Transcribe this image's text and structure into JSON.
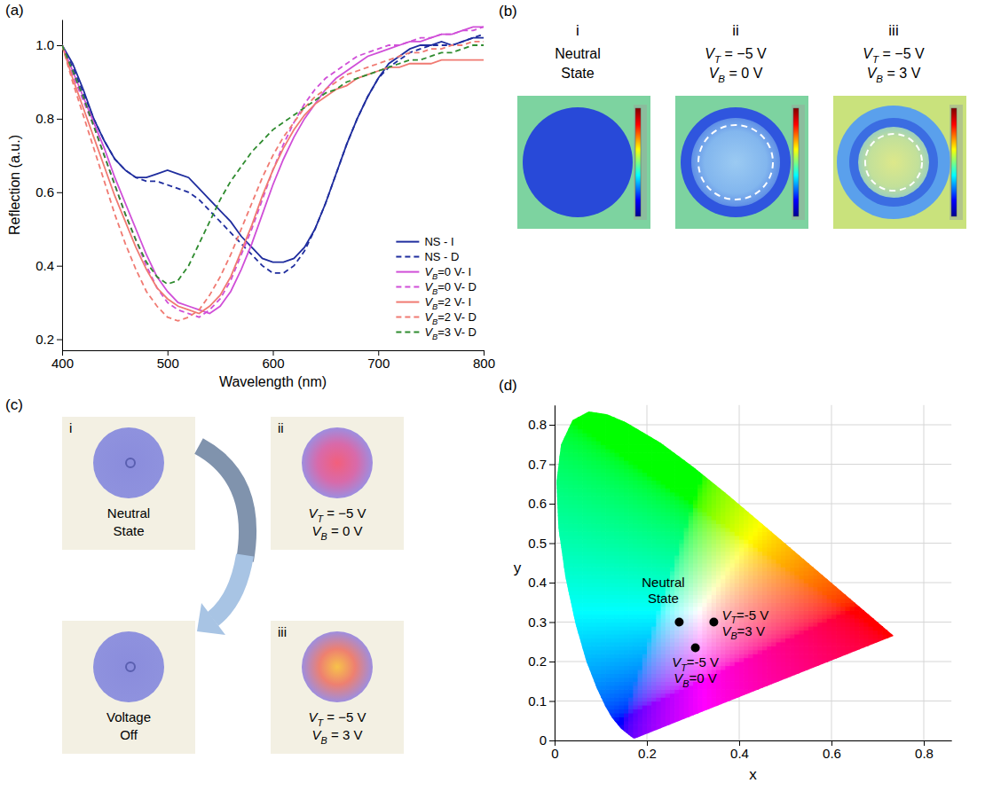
{
  "chart_data": [
    {
      "type": "line",
      "panel": "(a)",
      "xlabel": "Wavelength (nm)",
      "ylabel": "Reflection (a.u.)",
      "x": [
        400,
        410,
        420,
        430,
        440,
        450,
        460,
        470,
        480,
        490,
        500,
        510,
        520,
        530,
        540,
        550,
        560,
        570,
        580,
        590,
        600,
        610,
        620,
        630,
        640,
        650,
        660,
        670,
        680,
        690,
        700,
        710,
        720,
        730,
        740,
        750,
        760,
        770,
        780,
        790,
        800
      ],
      "xlim": [
        400,
        800
      ],
      "xticks": [
        400,
        500,
        600,
        700,
        800
      ],
      "ylim": [
        0.17,
        1.07
      ],
      "yticks": [
        0.2,
        0.4,
        0.6,
        0.8,
        {
          "value": 1,
          "label": "1.0"
        }
      ],
      "legend": "lower right",
      "series": [
        {
          "name": "NS - I",
          "color": "#1f2d9e",
          "line_style": "solid",
          "values": [
            1.0,
            0.95,
            0.88,
            0.8,
            0.74,
            0.69,
            0.66,
            0.64,
            0.64,
            0.65,
            0.66,
            0.65,
            0.64,
            0.61,
            0.58,
            0.55,
            0.52,
            0.48,
            0.45,
            0.42,
            0.41,
            0.41,
            0.42,
            0.45,
            0.5,
            0.57,
            0.65,
            0.73,
            0.8,
            0.86,
            0.91,
            0.95,
            0.97,
            0.99,
            1.0,
            1.0,
            1.01,
            1.0,
            1.01,
            1.02,
            1.02
          ]
        },
        {
          "name": "NS - D",
          "color": "#1f2d9e",
          "line_style": "dashed",
          "values": [
            1.0,
            0.94,
            0.87,
            0.8,
            0.74,
            0.69,
            0.66,
            0.64,
            0.63,
            0.63,
            0.62,
            0.61,
            0.6,
            0.58,
            0.55,
            0.52,
            0.49,
            0.46,
            0.43,
            0.4,
            0.38,
            0.38,
            0.4,
            0.44,
            0.5,
            0.57,
            0.65,
            0.73,
            0.8,
            0.86,
            0.91,
            0.94,
            0.96,
            0.98,
            0.99,
            1.0,
            1.0,
            1.0,
            1.01,
            1.02,
            1.03
          ]
        },
        {
          "name": "VB=0 V- I",
          "color": "#d04fd8",
          "line_style": "solid",
          "values": [
            1.0,
            0.93,
            0.86,
            0.79,
            0.72,
            0.64,
            0.57,
            0.5,
            0.43,
            0.37,
            0.33,
            0.3,
            0.29,
            0.28,
            0.27,
            0.29,
            0.33,
            0.39,
            0.46,
            0.54,
            0.62,
            0.69,
            0.75,
            0.8,
            0.84,
            0.88,
            0.91,
            0.93,
            0.95,
            0.97,
            0.98,
            0.99,
            1.0,
            1.01,
            1.01,
            1.02,
            1.03,
            1.03,
            1.04,
            1.05,
            1.05
          ]
        },
        {
          "name": "VB=0 V- D",
          "color": "#d04fd8",
          "line_style": "dashed",
          "values": [
            1.0,
            0.92,
            0.85,
            0.78,
            0.7,
            0.62,
            0.54,
            0.47,
            0.4,
            0.34,
            0.3,
            0.28,
            0.27,
            0.26,
            0.28,
            0.31,
            0.36,
            0.43,
            0.5,
            0.58,
            0.66,
            0.73,
            0.79,
            0.84,
            0.88,
            0.91,
            0.93,
            0.95,
            0.97,
            0.98,
            0.99,
            1.0,
            1.0,
            1.01,
            1.02,
            1.02,
            1.03,
            1.03,
            1.04,
            1.04,
            1.05
          ]
        },
        {
          "name": "VB=2 V- I",
          "color": "#f07a72",
          "line_style": "solid",
          "values": [
            1.0,
            0.91,
            0.83,
            0.75,
            0.67,
            0.59,
            0.52,
            0.45,
            0.39,
            0.34,
            0.31,
            0.29,
            0.28,
            0.27,
            0.29,
            0.32,
            0.37,
            0.44,
            0.51,
            0.59,
            0.66,
            0.72,
            0.77,
            0.81,
            0.84,
            0.86,
            0.88,
            0.89,
            0.91,
            0.92,
            0.93,
            0.94,
            0.94,
            0.95,
            0.95,
            0.95,
            0.96,
            0.96,
            0.96,
            0.96,
            0.96
          ]
        },
        {
          "name": "VB=2 V- D",
          "color": "#f07a72",
          "line_style": "dashed",
          "values": [
            1.0,
            0.9,
            0.81,
            0.72,
            0.63,
            0.54,
            0.46,
            0.39,
            0.33,
            0.29,
            0.26,
            0.25,
            0.26,
            0.28,
            0.32,
            0.37,
            0.43,
            0.5,
            0.57,
            0.64,
            0.7,
            0.75,
            0.79,
            0.83,
            0.86,
            0.88,
            0.9,
            0.92,
            0.93,
            0.94,
            0.95,
            0.96,
            0.97,
            0.98,
            0.98,
            0.99,
            0.99,
            1.0,
            1.0,
            1.01,
            1.01
          ]
        },
        {
          "name": "VB=3 V- D",
          "color": "#2e8b2e",
          "line_style": "dashed",
          "values": [
            1.0,
            0.93,
            0.86,
            0.78,
            0.7,
            0.62,
            0.54,
            0.47,
            0.41,
            0.37,
            0.35,
            0.36,
            0.4,
            0.46,
            0.52,
            0.58,
            0.63,
            0.67,
            0.71,
            0.74,
            0.77,
            0.79,
            0.81,
            0.83,
            0.85,
            0.87,
            0.88,
            0.9,
            0.91,
            0.92,
            0.93,
            0.94,
            0.95,
            0.96,
            0.96,
            0.97,
            0.98,
            0.98,
            0.99,
            1.0,
            1.0
          ]
        }
      ]
    },
    {
      "type": "scatter",
      "panel": "(d)",
      "xlabel": "x",
      "ylabel": "y",
      "xlim": [
        0,
        0.86
      ],
      "ylim": [
        0,
        0.85
      ],
      "xticks": [
        0,
        0.2,
        0.4,
        0.6,
        0.8
      ],
      "yticks": [
        0,
        0.1,
        0.2,
        0.3,
        0.4,
        0.5,
        0.6,
        0.7,
        0.8
      ],
      "grid": true,
      "marker": "circle",
      "color": "#000000",
      "x": [
        0.27,
        0.345,
        0.305
      ],
      "y": [
        0.3,
        0.3,
        0.235
      ],
      "point_labels": [
        [
          "Neutral",
          "State"
        ],
        [
          "VT=-5 V",
          "VB=3 V"
        ],
        [
          "VT=-5 V",
          "VB=0 V"
        ]
      ]
    }
  ],
  "images": {
    "b": {
      "panel": "(b)",
      "items": [
        {
          "label": "i",
          "caption": [
            "Neutral",
            "State"
          ]
        },
        {
          "label": "ii",
          "caption": [
            "VT = −5 V",
            "VB = 0 V"
          ]
        },
        {
          "label": "iii",
          "caption": [
            "VT = −5 V",
            "VB = 3 V"
          ]
        }
      ]
    },
    "c": {
      "panel": "(c)",
      "items": [
        {
          "label": "i",
          "caption": [
            "Neutral",
            "State"
          ]
        },
        {
          "label": "ii",
          "caption": [
            "VT = −5 V",
            "VB = 0 V"
          ]
        },
        {
          "label": "iii",
          "caption": [
            "VT = −5 V",
            "VB = 3 V"
          ]
        },
        {
          "caption": [
            "Voltage",
            "Off"
          ]
        }
      ]
    }
  }
}
